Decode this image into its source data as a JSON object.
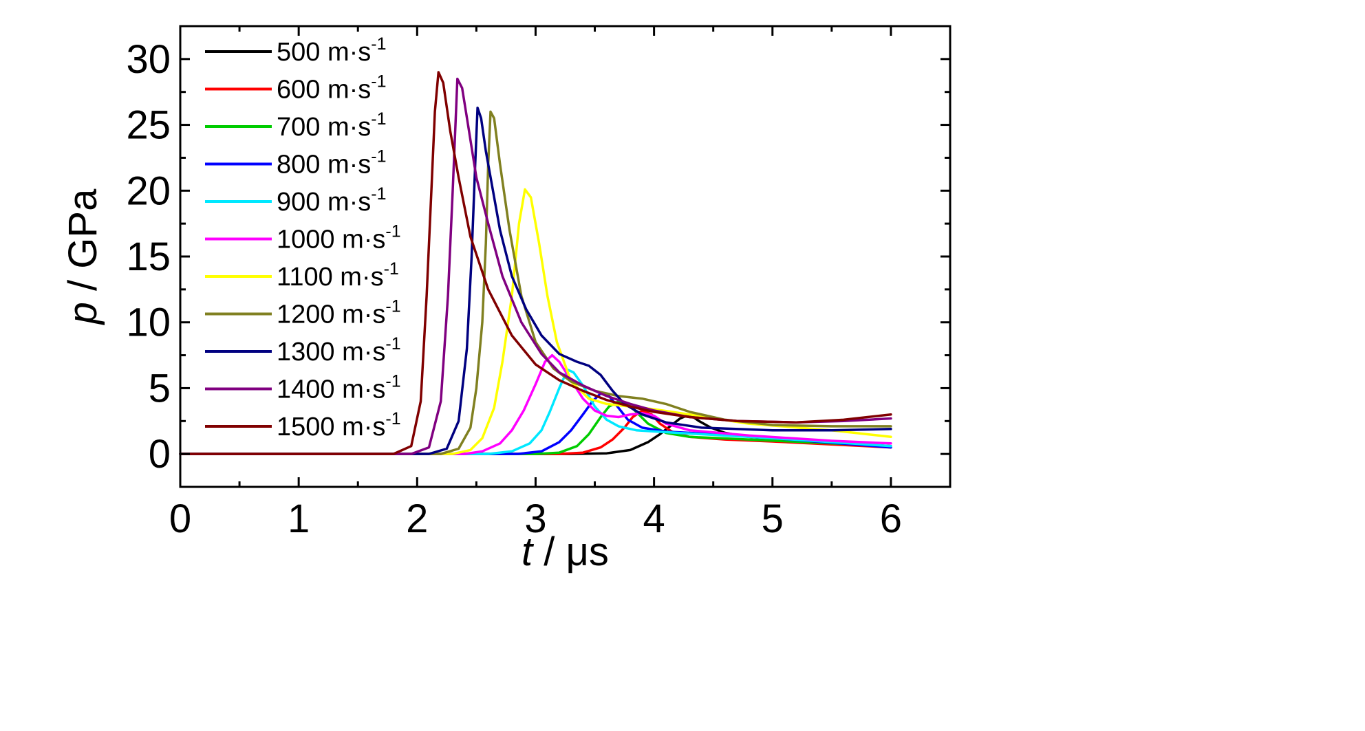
{
  "chart_data": {
    "type": "line",
    "xlabel": {
      "var": "t",
      "rest": " / μs"
    },
    "ylabel": {
      "var": "p",
      "rest": " / GPa"
    },
    "xlim": [
      0,
      6.5
    ],
    "ylim": [
      -2.5,
      32.5
    ],
    "xticks": [
      0,
      1,
      2,
      3,
      4,
      5,
      6
    ],
    "yticks": [
      0,
      5,
      10,
      15,
      20,
      25,
      30
    ],
    "x_minor_step": 0.5,
    "y_minor_step": 2.5,
    "grid": false,
    "legend_position": "top-left",
    "legend_unit": "m·s",
    "legend_exponent": "-1",
    "series": [
      {
        "name": "500",
        "color": "#000000",
        "points": [
          [
            0,
            0
          ],
          [
            3.3,
            0
          ],
          [
            3.6,
            0.05
          ],
          [
            3.8,
            0.3
          ],
          [
            3.95,
            0.9
          ],
          [
            4.05,
            1.5
          ],
          [
            4.15,
            2.2
          ],
          [
            4.22,
            2.7
          ],
          [
            4.3,
            3.0
          ],
          [
            4.38,
            2.5
          ],
          [
            4.48,
            2.0
          ],
          [
            4.6,
            1.6
          ],
          [
            4.8,
            1.3
          ],
          [
            5.2,
            1.0
          ],
          [
            6,
            0.6
          ]
        ]
      },
      {
        "name": "600",
        "color": "#ff0000",
        "points": [
          [
            0,
            0
          ],
          [
            3.2,
            0
          ],
          [
            3.4,
            0.1
          ],
          [
            3.55,
            0.5
          ],
          [
            3.65,
            1.1
          ],
          [
            3.75,
            2.0
          ],
          [
            3.82,
            2.8
          ],
          [
            3.9,
            3.3
          ],
          [
            3.98,
            3.0
          ],
          [
            4.05,
            2.3
          ],
          [
            4.15,
            1.7
          ],
          [
            4.3,
            1.3
          ],
          [
            4.6,
            1.1
          ],
          [
            5,
            0.95
          ],
          [
            6,
            0.5
          ]
        ]
      },
      {
        "name": "700",
        "color": "#00cc00",
        "points": [
          [
            0,
            0
          ],
          [
            3.0,
            0
          ],
          [
            3.2,
            0.1
          ],
          [
            3.35,
            0.6
          ],
          [
            3.45,
            1.5
          ],
          [
            3.55,
            2.8
          ],
          [
            3.62,
            3.6
          ],
          [
            3.7,
            4.0
          ],
          [
            3.78,
            3.8
          ],
          [
            3.86,
            3.1
          ],
          [
            3.95,
            2.3
          ],
          [
            4.1,
            1.6
          ],
          [
            4.3,
            1.3
          ],
          [
            4.8,
            1.1
          ],
          [
            6,
            0.6
          ]
        ]
      },
      {
        "name": "800",
        "color": "#0000ff",
        "points": [
          [
            0,
            0
          ],
          [
            2.85,
            0
          ],
          [
            3.05,
            0.2
          ],
          [
            3.2,
            0.9
          ],
          [
            3.3,
            1.8
          ],
          [
            3.4,
            3.0
          ],
          [
            3.48,
            4.0
          ],
          [
            3.55,
            4.6
          ],
          [
            3.62,
            4.4
          ],
          [
            3.7,
            3.5
          ],
          [
            3.78,
            2.6
          ],
          [
            3.9,
            2.0
          ],
          [
            4.1,
            1.7
          ],
          [
            4.5,
            1.5
          ],
          [
            5,
            1.2
          ],
          [
            6,
            0.5
          ]
        ]
      },
      {
        "name": "900",
        "color": "#00e8ff",
        "points": [
          [
            0,
            0
          ],
          [
            2.6,
            0
          ],
          [
            2.8,
            0.2
          ],
          [
            2.95,
            0.8
          ],
          [
            3.05,
            1.8
          ],
          [
            3.12,
            3.2
          ],
          [
            3.2,
            5.0
          ],
          [
            3.27,
            6.4
          ],
          [
            3.32,
            6.2
          ],
          [
            3.4,
            5.2
          ],
          [
            3.5,
            3.6
          ],
          [
            3.6,
            2.6
          ],
          [
            3.7,
            2.1
          ],
          [
            3.85,
            1.8
          ],
          [
            4.2,
            1.6
          ],
          [
            5,
            1.2
          ],
          [
            6,
            0.6
          ]
        ]
      },
      {
        "name": "1000",
        "color": "#ff00ff",
        "points": [
          [
            0,
            0
          ],
          [
            2.4,
            0
          ],
          [
            2.55,
            0.2
          ],
          [
            2.7,
            0.8
          ],
          [
            2.8,
            1.8
          ],
          [
            2.9,
            3.3
          ],
          [
            3.0,
            5.3
          ],
          [
            3.08,
            7.0
          ],
          [
            3.14,
            7.5
          ],
          [
            3.2,
            7.0
          ],
          [
            3.3,
            5.6
          ],
          [
            3.4,
            4.2
          ],
          [
            3.5,
            3.3
          ],
          [
            3.6,
            2.9
          ],
          [
            3.7,
            2.8
          ],
          [
            3.8,
            3.0
          ],
          [
            3.9,
            3.1
          ],
          [
            4.0,
            2.9
          ],
          [
            4.1,
            2.3
          ],
          [
            4.3,
            1.8
          ],
          [
            4.8,
            1.4
          ],
          [
            5.5,
            1.0
          ],
          [
            6,
            0.8
          ]
        ]
      },
      {
        "name": "1100",
        "color": "#ffff00",
        "points": [
          [
            0,
            0
          ],
          [
            2.3,
            0
          ],
          [
            2.45,
            0.3
          ],
          [
            2.55,
            1.2
          ],
          [
            2.65,
            3.5
          ],
          [
            2.72,
            7.0
          ],
          [
            2.8,
            12.0
          ],
          [
            2.86,
            17.5
          ],
          [
            2.91,
            20.1
          ],
          [
            2.96,
            19.5
          ],
          [
            3.03,
            16.0
          ],
          [
            3.1,
            12.0
          ],
          [
            3.18,
            8.5
          ],
          [
            3.3,
            5.5
          ],
          [
            3.45,
            4.2
          ],
          [
            3.6,
            3.8
          ],
          [
            3.8,
            3.6
          ],
          [
            4.0,
            3.4
          ],
          [
            4.3,
            3.0
          ],
          [
            4.8,
            2.3
          ],
          [
            5.5,
            1.8
          ],
          [
            6,
            1.3
          ]
        ]
      },
      {
        "name": "1200",
        "color": "#808020",
        "points": [
          [
            0,
            0
          ],
          [
            2.2,
            0
          ],
          [
            2.35,
            0.4
          ],
          [
            2.45,
            2.0
          ],
          [
            2.5,
            5.0
          ],
          [
            2.55,
            10.0
          ],
          [
            2.58,
            16.0
          ],
          [
            2.6,
            22.0
          ],
          [
            2.62,
            26.0
          ],
          [
            2.65,
            25.5
          ],
          [
            2.7,
            22.0
          ],
          [
            2.78,
            17.0
          ],
          [
            2.88,
            12.0
          ],
          [
            3.0,
            8.5
          ],
          [
            3.15,
            6.5
          ],
          [
            3.3,
            5.5
          ],
          [
            3.5,
            4.8
          ],
          [
            3.7,
            4.4
          ],
          [
            3.9,
            4.2
          ],
          [
            4.1,
            3.8
          ],
          [
            4.3,
            3.2
          ],
          [
            4.6,
            2.6
          ],
          [
            5.0,
            2.2
          ],
          [
            5.5,
            2.1
          ],
          [
            6,
            2.1
          ]
        ]
      },
      {
        "name": "1300",
        "color": "#000080",
        "points": [
          [
            0,
            0
          ],
          [
            2.1,
            0
          ],
          [
            2.25,
            0.4
          ],
          [
            2.35,
            2.5
          ],
          [
            2.42,
            8.0
          ],
          [
            2.46,
            15.0
          ],
          [
            2.49,
            22.0
          ],
          [
            2.51,
            26.3
          ],
          [
            2.54,
            25.5
          ],
          [
            2.58,
            23.0
          ],
          [
            2.63,
            20.5
          ],
          [
            2.7,
            17.0
          ],
          [
            2.8,
            13.5
          ],
          [
            2.92,
            11.0
          ],
          [
            3.05,
            9.0
          ],
          [
            3.2,
            7.6
          ],
          [
            3.35,
            7.0
          ],
          [
            3.45,
            6.7
          ],
          [
            3.55,
            6.0
          ],
          [
            3.65,
            4.8
          ],
          [
            3.75,
            3.8
          ],
          [
            3.9,
            3.0
          ],
          [
            4.1,
            2.4
          ],
          [
            4.4,
            2.0
          ],
          [
            5.0,
            1.8
          ],
          [
            5.5,
            1.8
          ],
          [
            6,
            1.9
          ]
        ]
      },
      {
        "name": "1400",
        "color": "#800080",
        "points": [
          [
            0,
            0
          ],
          [
            1.95,
            0
          ],
          [
            2.1,
            0.5
          ],
          [
            2.2,
            4.0
          ],
          [
            2.26,
            12.0
          ],
          [
            2.3,
            20.0
          ],
          [
            2.34,
            28.5
          ],
          [
            2.38,
            27.8
          ],
          [
            2.43,
            25.0
          ],
          [
            2.5,
            21.0
          ],
          [
            2.6,
            17.5
          ],
          [
            2.72,
            13.5
          ],
          [
            2.88,
            10.0
          ],
          [
            3.05,
            7.6
          ],
          [
            3.2,
            6.2
          ],
          [
            3.4,
            5.2
          ],
          [
            3.6,
            4.4
          ],
          [
            3.8,
            3.8
          ],
          [
            4.0,
            3.3
          ],
          [
            4.3,
            2.8
          ],
          [
            4.7,
            2.5
          ],
          [
            5.2,
            2.4
          ],
          [
            5.6,
            2.5
          ],
          [
            6,
            2.7
          ]
        ]
      },
      {
        "name": "1500",
        "color": "#800000",
        "points": [
          [
            0,
            0
          ],
          [
            1.8,
            0
          ],
          [
            1.95,
            0.6
          ],
          [
            2.03,
            4.0
          ],
          [
            2.08,
            12.0
          ],
          [
            2.12,
            20.0
          ],
          [
            2.15,
            26.0
          ],
          [
            2.18,
            29.0
          ],
          [
            2.22,
            28.2
          ],
          [
            2.28,
            24.5
          ],
          [
            2.35,
            21.0
          ],
          [
            2.45,
            16.5
          ],
          [
            2.6,
            12.5
          ],
          [
            2.8,
            9.0
          ],
          [
            3.0,
            6.8
          ],
          [
            3.2,
            5.6
          ],
          [
            3.4,
            4.8
          ],
          [
            3.6,
            4.1
          ],
          [
            3.8,
            3.6
          ],
          [
            4.0,
            3.2
          ],
          [
            4.3,
            2.8
          ],
          [
            4.7,
            2.5
          ],
          [
            5.2,
            2.4
          ],
          [
            5.6,
            2.6
          ],
          [
            6,
            3.0
          ]
        ]
      }
    ]
  }
}
